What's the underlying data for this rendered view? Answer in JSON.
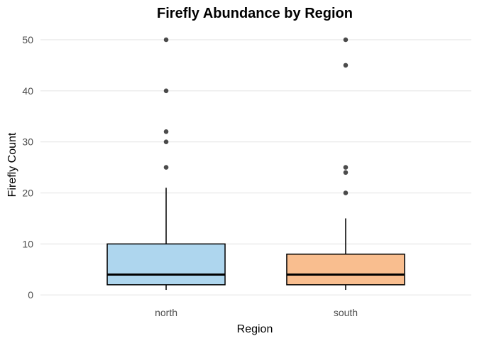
{
  "chart_data": {
    "type": "box",
    "title": "Firefly Abundance by Region",
    "xlabel": "Region",
    "ylabel": "Firefly Count",
    "ylim": [
      -1.5,
      52.5
    ],
    "yticks": [
      0,
      10,
      20,
      30,
      40,
      50
    ],
    "grid": true,
    "legend": "none",
    "categories": [
      "north",
      "south"
    ],
    "series": [
      {
        "category": "north",
        "color": "#AED6EE",
        "whisker_low": 1,
        "q1": 2,
        "median": 4,
        "q3": 10,
        "whisker_high": 21,
        "outliers": [
          25,
          30,
          32,
          40,
          50
        ]
      },
      {
        "category": "south",
        "color": "#F9BE8F",
        "whisker_low": 1,
        "q1": 2,
        "median": 4,
        "q3": 8,
        "whisker_high": 15,
        "outliers": [
          20,
          24,
          25,
          45,
          50
        ]
      }
    ]
  }
}
